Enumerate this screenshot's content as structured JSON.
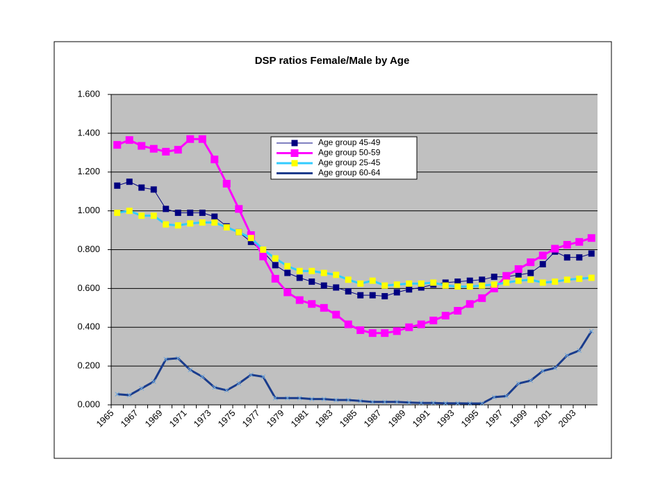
{
  "chart_data": {
    "type": "line",
    "title": "DSP ratios Female/Male by Age",
    "categories": [
      "1965",
      null,
      "1967",
      null,
      "1969",
      null,
      "1971",
      null,
      "1973",
      null,
      "1975",
      null,
      "1977",
      null,
      "1979",
      null,
      "1981",
      null,
      "1983",
      null,
      "1985",
      null,
      "1987",
      null,
      "1989",
      null,
      "1991",
      null,
      "1993",
      null,
      "1995",
      null,
      "1997",
      null,
      "1999",
      null,
      "2001",
      null,
      "2003",
      null
    ],
    "ylim": [
      0,
      1.6
    ],
    "yticks": [
      {
        "value": 0,
        "label": "0.000"
      },
      {
        "value": 0.2,
        "label": "0.200"
      },
      {
        "value": 0.4,
        "label": "0.400"
      },
      {
        "value": 0.6,
        "label": "0.600"
      },
      {
        "value": 0.8,
        "label": "0.800"
      },
      {
        "value": 1.0,
        "label": "1.000"
      },
      {
        "value": 1.2,
        "label": "1.200"
      },
      {
        "value": 1.4,
        "label": "1.400"
      },
      {
        "value": 1.6,
        "label": "1.600"
      }
    ],
    "grid": true,
    "series": [
      {
        "name": "Age group 45-49",
        "color": "#000080",
        "marker_color": "#000080",
        "values": [
          1.13,
          1.15,
          1.12,
          1.11,
          1.01,
          0.99,
          0.99,
          0.99,
          0.97,
          0.92,
          0.89,
          0.84,
          0.79,
          0.72,
          0.68,
          0.655,
          0.635,
          0.615,
          0.605,
          0.585,
          0.565,
          0.565,
          0.56,
          0.58,
          0.595,
          0.605,
          0.62,
          0.63,
          0.635,
          0.64,
          0.645,
          0.66,
          0.66,
          0.67,
          0.68,
          0.725,
          0.79,
          0.76,
          0.76,
          0.78
        ]
      },
      {
        "name": "Age group 50-59",
        "color": "#ff00ff",
        "marker_color": "#ff00ff",
        "values": [
          1.34,
          1.365,
          1.335,
          1.32,
          1.305,
          1.315,
          1.37,
          1.37,
          1.265,
          1.14,
          1.01,
          0.875,
          0.765,
          0.65,
          0.58,
          0.54,
          0.52,
          0.5,
          0.465,
          0.415,
          0.385,
          0.37,
          0.37,
          0.38,
          0.4,
          0.415,
          0.435,
          0.46,
          0.485,
          0.52,
          0.55,
          0.6,
          0.665,
          0.7,
          0.735,
          0.77,
          0.805,
          0.825,
          0.84,
          0.86
        ]
      },
      {
        "name": "Age group 25-45",
        "color": "#33ccff",
        "marker_color": "#ffff00",
        "values": [
          0.99,
          1.0,
          0.975,
          0.975,
          0.93,
          0.925,
          0.935,
          0.94,
          0.94,
          0.915,
          0.89,
          0.86,
          0.8,
          0.755,
          0.715,
          0.69,
          0.69,
          0.68,
          0.67,
          0.645,
          0.625,
          0.64,
          0.615,
          0.62,
          0.625,
          0.625,
          0.63,
          0.615,
          0.61,
          0.61,
          0.615,
          0.62,
          0.63,
          0.64,
          0.645,
          0.63,
          0.635,
          0.645,
          0.65,
          0.655
        ]
      },
      {
        "name": "Age group 60-64",
        "color": "#1a3c8c",
        "marker_color": "#1a3c8c",
        "values": [
          0.055,
          0.05,
          0.085,
          0.12,
          0.235,
          0.24,
          0.18,
          0.145,
          0.09,
          0.075,
          0.11,
          0.155,
          0.145,
          0.035,
          0.035,
          0.035,
          0.03,
          0.03,
          0.025,
          0.025,
          0.02,
          0.015,
          0.015,
          0.015,
          0.012,
          0.01,
          0.01,
          0.008,
          0.008,
          0.007,
          0.007,
          0.04,
          0.045,
          0.11,
          0.125,
          0.175,
          0.19,
          0.255,
          0.28,
          0.38
        ]
      }
    ]
  }
}
